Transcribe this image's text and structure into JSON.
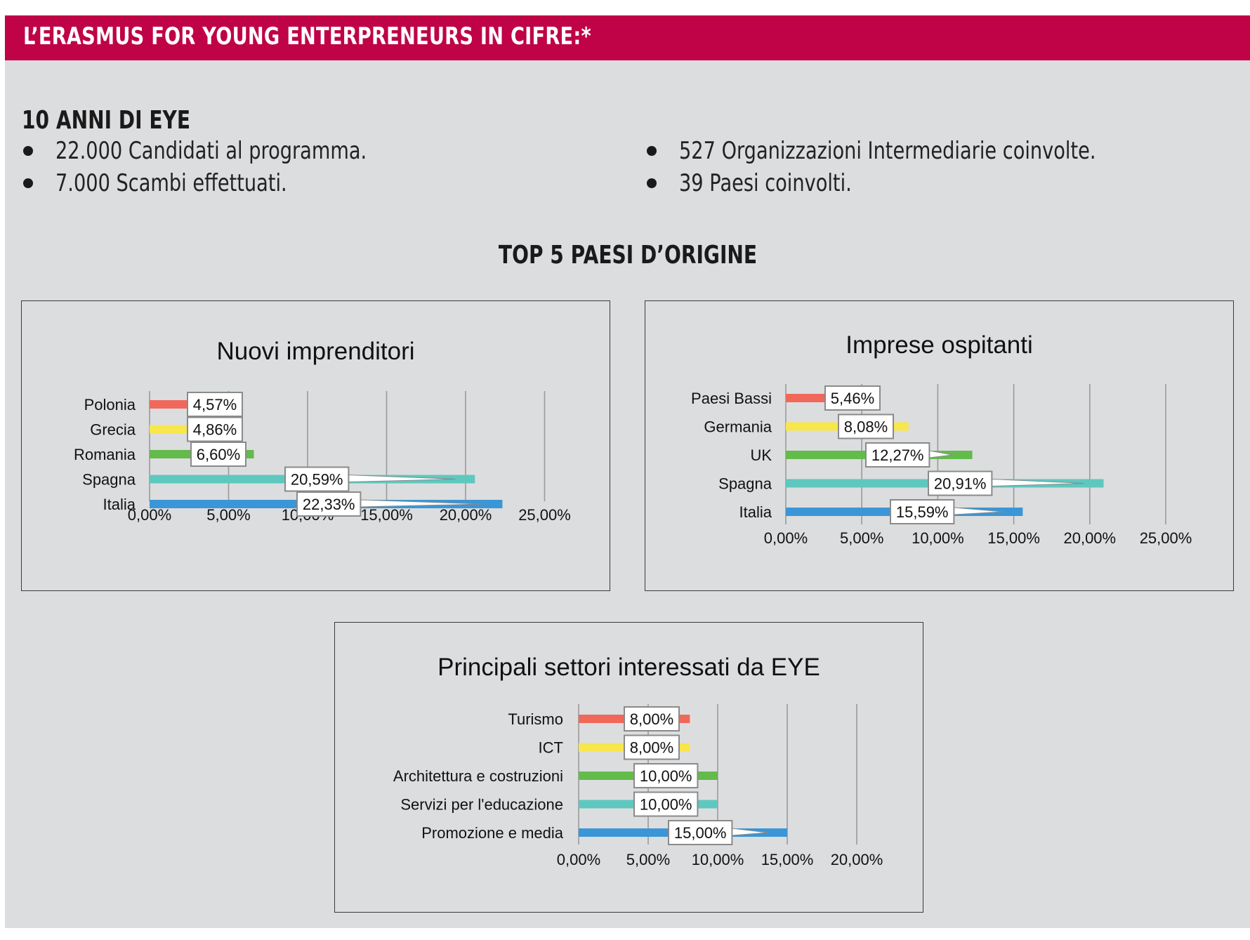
{
  "header": {
    "title": "L’ERASMUS FOR YOUNG ENTERPRENEURS IN CIFRE:*"
  },
  "section": {
    "heading": "10 ANNI DI EYE",
    "bullets_left": [
      "22.000 Candidati al programma.",
      "7.000 Scambi effettuati."
    ],
    "bullets_right": [
      "527 Organizzazioni Intermediarie coinvolte.",
      "39 Paesi coinvolti."
    ]
  },
  "top5_heading": "TOP 5 PAESI D’ORIGINE",
  "colors": {
    "banner": "#bf0346",
    "panel": "#dcdddf",
    "series": [
      "#f0685a",
      "#f7e64c",
      "#62bb4a",
      "#5ec8bf",
      "#3a96d6"
    ]
  },
  "chart_data": [
    {
      "type": "bar",
      "orientation": "horizontal",
      "title": "Nuovi imprenditori",
      "categories": [
        "Polonia",
        "Grecia",
        "Romania",
        "Spagna",
        "Italia"
      ],
      "values": [
        4.57,
        4.86,
        6.6,
        20.59,
        22.33
      ],
      "value_labels": [
        "4,57%",
        "4,86%",
        "6,60%",
        "20,59%",
        "22,33%"
      ],
      "xlim": [
        0,
        25
      ],
      "xticks": [
        "0,00%",
        "5,00%",
        "10,00%",
        "15,00%",
        "20,00%",
        "25,00%"
      ],
      "grid": true,
      "legend": "none"
    },
    {
      "type": "bar",
      "orientation": "horizontal",
      "title": "Imprese ospitanti",
      "categories": [
        "Paesi Bassi",
        "Germania",
        "UK",
        "Spagna",
        "Italia"
      ],
      "values": [
        5.46,
        8.08,
        12.27,
        20.91,
        15.59
      ],
      "value_labels": [
        "5,46%",
        "8,08%",
        "12,27%",
        "20,91%",
        "15,59%"
      ],
      "xlim": [
        0,
        25
      ],
      "xticks": [
        "0,00%",
        "5,00%",
        "10,00%",
        "15,00%",
        "20,00%",
        "25,00%"
      ],
      "grid": true,
      "legend": "none"
    },
    {
      "type": "bar",
      "orientation": "horizontal",
      "title": "Principali settori interessati da EYE",
      "categories": [
        "Turismo",
        "ICT",
        "Architettura e costruzioni",
        "Servizi per l'educazione",
        "Promozione e media"
      ],
      "values": [
        8.0,
        8.0,
        10.0,
        10.0,
        15.0
      ],
      "value_labels": [
        "8,00%",
        "8,00%",
        "10,00%",
        "10,00%",
        "15,00%"
      ],
      "xlim": [
        0,
        20
      ],
      "xticks": [
        "0,00%",
        "5,00%",
        "10,00%",
        "15,00%",
        "20,00%"
      ],
      "grid": true,
      "legend": "none"
    }
  ]
}
